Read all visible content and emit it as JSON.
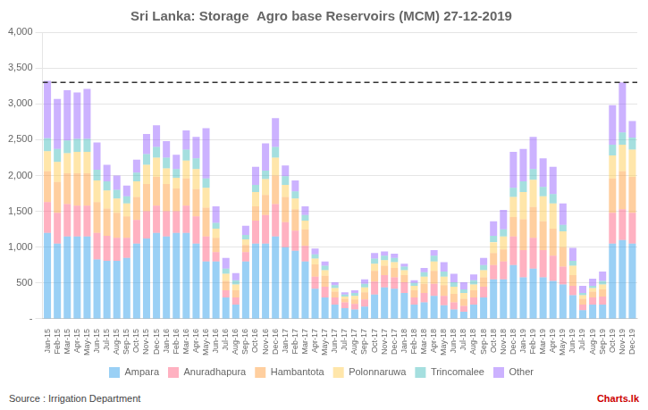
{
  "chart_data": {
    "type": "bar",
    "title": "Sri Lanka: Storage  Agro base Reservoirs (MCM) 27-12-2019",
    "source": "Source : Irrigation Department",
    "annotations": [
      "Charts.lk"
    ],
    "reference_line": 3300,
    "stacked": true,
    "grid": "y",
    "legend": "bottom",
    "ylim": [
      0,
      4000
    ],
    "yticks": [
      {
        "value": 0,
        "label": "-"
      },
      500,
      {
        "value": 1000,
        "label": "1,000"
      },
      {
        "value": 1500,
        "label": "1,500"
      },
      {
        "value": 2000,
        "label": "2,000"
      },
      {
        "value": 2500,
        "label": "2,500"
      },
      {
        "value": 3000,
        "label": "3,000"
      },
      {
        "value": 3500,
        "label": "3,500"
      },
      {
        "value": 4000,
        "label": "4,000"
      }
    ],
    "categories": [
      "Jan-15",
      "Feb-15",
      "Mar-15",
      "Apr-15",
      "May-15",
      "Jun-15",
      "Jul-15",
      "Aug-15",
      "Sep-15",
      "Oct-15",
      "Nov-15",
      "Dec-15",
      "Jan-16",
      "Feb-16",
      "Mar-16",
      "Apr-16",
      "May-16",
      "Jun-16",
      "Jul-16",
      "Aug-16",
      "Sep-16",
      "Oct-16",
      "Nov-16",
      "Dec-16",
      "Jan-17",
      "Feb-17",
      "Mar-17",
      "Apr-17",
      "May-17",
      "Jun-17",
      "Jul-17",
      "Aug-17",
      "Sep-17",
      "Oct-17",
      "Nov-17",
      "Dec-17",
      "Jan-18",
      "Feb-18",
      "Mar-18",
      "Apr-18",
      "May-18",
      "Jun-18",
      "Jul-18",
      "Aug-18",
      "Sep-18",
      "Oct-18",
      "Nov-18",
      "Dec-18",
      "Jan-19",
      "Feb-19",
      "Mar-19",
      "Apr-19",
      "May-19",
      "Jun-19",
      "Jul-19",
      "Aug-19",
      "Sep-19",
      "Oct-19",
      "Nov-19",
      "Dec-19"
    ],
    "series": [
      {
        "name": "Ampara",
        "values": [
          1200,
          1050,
          1150,
          1150,
          1150,
          830,
          810,
          810,
          850,
          1050,
          1120,
          1200,
          1150,
          1200,
          1200,
          1050,
          800,
          800,
          300,
          200,
          800,
          1050,
          1050,
          1150,
          1000,
          950,
          800,
          420,
          300,
          200,
          150,
          130,
          170,
          340,
          440,
          420,
          360,
          200,
          230,
          320,
          190,
          130,
          100,
          200,
          300,
          550,
          550,
          750,
          580,
          700,
          580,
          530,
          480,
          330,
          120,
          200,
          200,
          1050,
          1100,
          1050
        ]
      },
      {
        "name": "Anuradhapura",
        "values": [
          430,
          430,
          450,
          430,
          430,
          370,
          350,
          320,
          280,
          330,
          380,
          380,
          350,
          300,
          380,
          380,
          350,
          130,
          100,
          100,
          130,
          320,
          400,
          450,
          350,
          280,
          220,
          170,
          150,
          100,
          80,
          80,
          100,
          180,
          170,
          160,
          150,
          100,
          130,
          170,
          130,
          100,
          80,
          100,
          150,
          200,
          250,
          400,
          380,
          430,
          380,
          350,
          250,
          130,
          80,
          100,
          110,
          430,
          430,
          430
        ]
      },
      {
        "name": "Hambantota",
        "values": [
          430,
          430,
          430,
          450,
          450,
          430,
          380,
          350,
          300,
          320,
          380,
          400,
          380,
          320,
          380,
          380,
          400,
          200,
          130,
          100,
          100,
          200,
          280,
          400,
          350,
          300,
          230,
          170,
          150,
          80,
          50,
          60,
          100,
          150,
          130,
          130,
          100,
          100,
          130,
          180,
          150,
          120,
          100,
          100,
          130,
          170,
          170,
          270,
          430,
          430,
          400,
          380,
          270,
          150,
          80,
          80,
          100,
          480,
          530,
          500
        ]
      },
      {
        "name": "Polonnaruwa",
        "values": [
          280,
          280,
          280,
          300,
          300,
          300,
          250,
          200,
          180,
          220,
          270,
          270,
          220,
          150,
          250,
          280,
          280,
          130,
          100,
          80,
          80,
          200,
          220,
          250,
          170,
          150,
          120,
          80,
          80,
          50,
          30,
          50,
          70,
          100,
          80,
          80,
          70,
          60,
          100,
          130,
          120,
          100,
          80,
          80,
          100,
          150,
          180,
          280,
          380,
          380,
          350,
          350,
          220,
          130,
          50,
          50,
          70,
          320,
          370,
          380
        ]
      },
      {
        "name": "Trincomalee",
        "values": [
          180,
          180,
          180,
          180,
          180,
          150,
          130,
          120,
          100,
          120,
          150,
          150,
          150,
          120,
          150,
          150,
          130,
          80,
          70,
          60,
          60,
          100,
          120,
          150,
          120,
          100,
          80,
          60,
          60,
          40,
          30,
          40,
          50,
          70,
          60,
          60,
          50,
          40,
          60,
          80,
          70,
          60,
          50,
          60,
          70,
          90,
          100,
          130,
          150,
          150,
          130,
          130,
          90,
          70,
          30,
          30,
          50,
          150,
          170,
          170
        ]
      },
      {
        "name": "Other",
        "values": [
          800,
          700,
          700,
          650,
          700,
          380,
          230,
          200,
          150,
          180,
          280,
          300,
          230,
          200,
          270,
          300,
          700,
          230,
          150,
          100,
          130,
          250,
          380,
          400,
          150,
          150,
          120,
          80,
          60,
          40,
          30,
          40,
          60,
          80,
          60,
          60,
          40,
          40,
          60,
          80,
          130,
          120,
          100,
          80,
          100,
          200,
          270,
          500,
          450,
          450,
          400,
          380,
          300,
          180,
          100,
          100,
          130,
          550,
          700,
          230
        ]
      }
    ]
  }
}
